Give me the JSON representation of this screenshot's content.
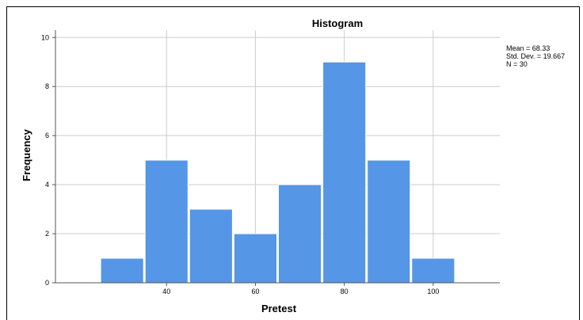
{
  "chart_data": {
    "type": "bar",
    "title": "Histogram",
    "xlabel": "Pretest",
    "ylabel": "Frequency",
    "bins": [
      {
        "x0": 25,
        "x1": 35,
        "count": 1
      },
      {
        "x0": 35,
        "x1": 45,
        "count": 5
      },
      {
        "x0": 45,
        "x1": 55,
        "count": 3
      },
      {
        "x0": 55,
        "x1": 65,
        "count": 2
      },
      {
        "x0": 65,
        "x1": 75,
        "count": 4
      },
      {
        "x0": 75,
        "x1": 85,
        "count": 9
      },
      {
        "x0": 85,
        "x1": 95,
        "count": 5
      },
      {
        "x0": 95,
        "x1": 105,
        "count": 1
      }
    ],
    "xticks": [
      40,
      60,
      80,
      100
    ],
    "yticks": [
      0,
      2,
      4,
      6,
      8,
      10
    ],
    "xlim": [
      15,
      115
    ],
    "ylim": [
      0,
      10.3
    ],
    "grid": true,
    "bar_color": "#5596E6"
  },
  "stats": {
    "mean": "Mean = 68.33",
    "sd": "Std. Dev. = 19.667",
    "n": "N = 30"
  }
}
